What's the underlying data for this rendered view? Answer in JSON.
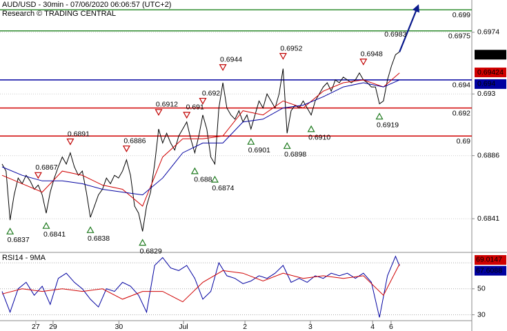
{
  "chart_data": [
    {
      "type": "line",
      "title": "AUD/USD - 30min - 07/06/2020 06:06:57 (UTC+2)",
      "subtitle": "Research © TRADING CENTRAL",
      "ylim": [
        0.6817,
        0.6997
      ],
      "yticks": [
        0.6841,
        0.6886,
        0.693,
        0.6974
      ],
      "xticks": [
        {
          "value": 8.4,
          "label": "27"
        },
        {
          "value": 12.7,
          "label": "29"
        },
        {
          "value": 29.1,
          "label": "30"
        },
        {
          "value": 45.2,
          "label": "Jul"
        },
        {
          "value": 60.5,
          "label": "2"
        },
        {
          "value": 76.8,
          "label": "3"
        },
        {
          "value": 92.3,
          "label": "4"
        },
        {
          "value": 96.9,
          "label": "6"
        }
      ],
      "grid": true,
      "series": [
        {
          "name": "price",
          "color": "#000000",
          "values": [
            0.688,
            0.6875,
            0.684,
            0.6858,
            0.687,
            0.6866,
            0.6872,
            0.6868,
            0.6862,
            0.6865,
            0.6858,
            0.6845,
            0.686,
            0.687,
            0.6878,
            0.6885,
            0.688,
            0.6888,
            0.6878,
            0.6872,
            0.6875,
            0.686,
            0.6842,
            0.685,
            0.6858,
            0.6862,
            0.687,
            0.6866,
            0.6872,
            0.687,
            0.6875,
            0.6883,
            0.6872,
            0.685,
            0.6845,
            0.6832,
            0.685,
            0.686,
            0.688,
            0.6905,
            0.6895,
            0.6902,
            0.6895,
            0.689,
            0.69,
            0.6905,
            0.691,
            0.6898,
            0.6888,
            0.69,
            0.6915,
            0.6905,
            0.6885,
            0.688,
            0.692,
            0.6938,
            0.692,
            0.6915,
            0.6912,
            0.6918,
            0.691,
            0.6915,
            0.6905,
            0.6915,
            0.6925,
            0.692,
            0.693,
            0.6925,
            0.692,
            0.693,
            0.6948,
            0.6902,
            0.6918,
            0.6922,
            0.692,
            0.6925,
            0.692,
            0.6915,
            0.6925,
            0.693,
            0.6935,
            0.6938,
            0.6932,
            0.694,
            0.6938,
            0.6942,
            0.694,
            0.6938,
            0.694,
            0.6945,
            0.694,
            0.6938,
            0.6935,
            0.6935,
            0.6923,
            0.6925,
            0.694,
            0.695,
            0.6958,
            0.696
          ]
        },
        {
          "name": "fast MA",
          "color": "#d00000",
          "x": [
            0,
            5,
            10,
            15,
            20,
            25,
            30,
            35,
            40,
            45,
            50,
            55,
            60,
            65,
            70,
            75,
            80,
            85,
            90,
            95,
            99
          ],
          "values": [
            0.6872,
            0.6866,
            0.686,
            0.6875,
            0.6872,
            0.6865,
            0.6862,
            0.685,
            0.6885,
            0.6898,
            0.6898,
            0.69,
            0.6918,
            0.6915,
            0.6925,
            0.692,
            0.6932,
            0.6938,
            0.694,
            0.6935,
            0.6945
          ]
        },
        {
          "name": "slow MA",
          "color": "#0000a0",
          "x": [
            0,
            5,
            10,
            15,
            20,
            25,
            30,
            35,
            40,
            45,
            50,
            55,
            60,
            65,
            70,
            75,
            80,
            85,
            90,
            95,
            99
          ],
          "values": [
            0.6878,
            0.6872,
            0.6868,
            0.6868,
            0.6866,
            0.6862,
            0.686,
            0.6858,
            0.687,
            0.6888,
            0.6895,
            0.6895,
            0.691,
            0.6912,
            0.692,
            0.6922,
            0.6928,
            0.6935,
            0.6938,
            0.6935,
            0.694
          ]
        },
        {
          "name": "projection",
          "color": "#0a1a8c",
          "x": [
            99,
            103.5
          ],
          "values": [
            0.696,
            0.6992
          ]
        }
      ],
      "levels": [
        {
          "value": 0.699,
          "color": "#2e8b2e"
        },
        {
          "value": 0.6975,
          "color": "#2e8b2e"
        },
        {
          "value": 0.694,
          "color": "#0000a0"
        },
        {
          "value": 0.692,
          "color": "#d00000"
        },
        {
          "value": 0.69,
          "color": "#d00000"
        }
      ],
      "price_tags": [
        {
          "value": 0.6958,
          "color": "#000000"
        },
        {
          "value": 0.69424,
          "color": "#d00000"
        },
        {
          "value": 0.694,
          "color": "#0000a0"
        }
      ],
      "target": {
        "value": 0.6983
      },
      "annotations": [
        {
          "x": 2,
          "value": 0.6837,
          "kind": "low"
        },
        {
          "x": 11,
          "value": 0.6841,
          "kind": "low"
        },
        {
          "x": 22,
          "value": 0.6838,
          "kind": "low"
        },
        {
          "x": 35,
          "value": 0.6829,
          "kind": "low"
        },
        {
          "x": 9,
          "value": 0.6867,
          "kind": "high"
        },
        {
          "x": 17,
          "value": 0.6891,
          "kind": "high"
        },
        {
          "x": 31,
          "value": 0.6886,
          "kind": "high"
        },
        {
          "x": 39,
          "value": 0.6912,
          "kind": "high"
        },
        {
          "x": 46,
          "value": 0.691,
          "kind": "high"
        },
        {
          "x": 50,
          "value": 0.692,
          "kind": "high"
        },
        {
          "x": 55,
          "value": 0.6944,
          "kind": "high"
        },
        {
          "x": 48,
          "value": 0.688,
          "kind": "low"
        },
        {
          "x": 53,
          "value": 0.6874,
          "kind": "low"
        },
        {
          "x": 62,
          "value": 0.6901,
          "kind": "low"
        },
        {
          "x": 71,
          "value": 0.6898,
          "kind": "low"
        },
        {
          "x": 70,
          "value": 0.6952,
          "kind": "high"
        },
        {
          "x": 77,
          "value": 0.691,
          "label": "0.6910",
          "kind": "low"
        },
        {
          "x": 90,
          "value": 0.6948,
          "kind": "high"
        },
        {
          "x": 94,
          "value": 0.6919,
          "kind": "low"
        }
      ]
    },
    {
      "type": "line",
      "title": "RSI14 - 9MA",
      "ylim": [
        25.5,
        78
      ],
      "yticks": [
        30,
        50
      ],
      "levels": [
        70,
        50,
        30
      ],
      "series": [
        {
          "name": "RSI14",
          "color": "#0000a0",
          "x": [
            0,
            2,
            4,
            6,
            8,
            10,
            12,
            14,
            16,
            18,
            20,
            22,
            24,
            26,
            28,
            30,
            32,
            34,
            36,
            38,
            40,
            42,
            44,
            46,
            48,
            50,
            52,
            54,
            56,
            58,
            60,
            62,
            64,
            66,
            68,
            70,
            72,
            74,
            76,
            78,
            80,
            82,
            84,
            86,
            88,
            90,
            92,
            94,
            96,
            98,
            99
          ],
          "values": [
            48,
            32,
            50,
            55,
            45,
            52,
            38,
            58,
            62,
            55,
            50,
            42,
            36,
            50,
            48,
            55,
            52,
            45,
            32,
            68,
            74,
            66,
            64,
            68,
            58,
            42,
            48,
            70,
            60,
            58,
            54,
            56,
            60,
            58,
            62,
            68,
            55,
            58,
            55,
            60,
            58,
            62,
            60,
            62,
            58,
            62,
            55,
            28,
            60,
            75,
            67.6088
          ]
        },
        {
          "name": "9MA",
          "color": "#d00000",
          "x": [
            0,
            5,
            10,
            15,
            20,
            25,
            30,
            35,
            40,
            45,
            50,
            55,
            60,
            65,
            70,
            75,
            80,
            85,
            90,
            95,
            99
          ],
          "values": [
            46,
            50,
            48,
            50,
            48,
            50,
            42,
            48,
            48,
            40,
            55,
            64,
            62,
            56,
            62,
            58,
            60,
            58,
            60,
            45,
            69.0147
          ]
        }
      ]
    }
  ]
}
